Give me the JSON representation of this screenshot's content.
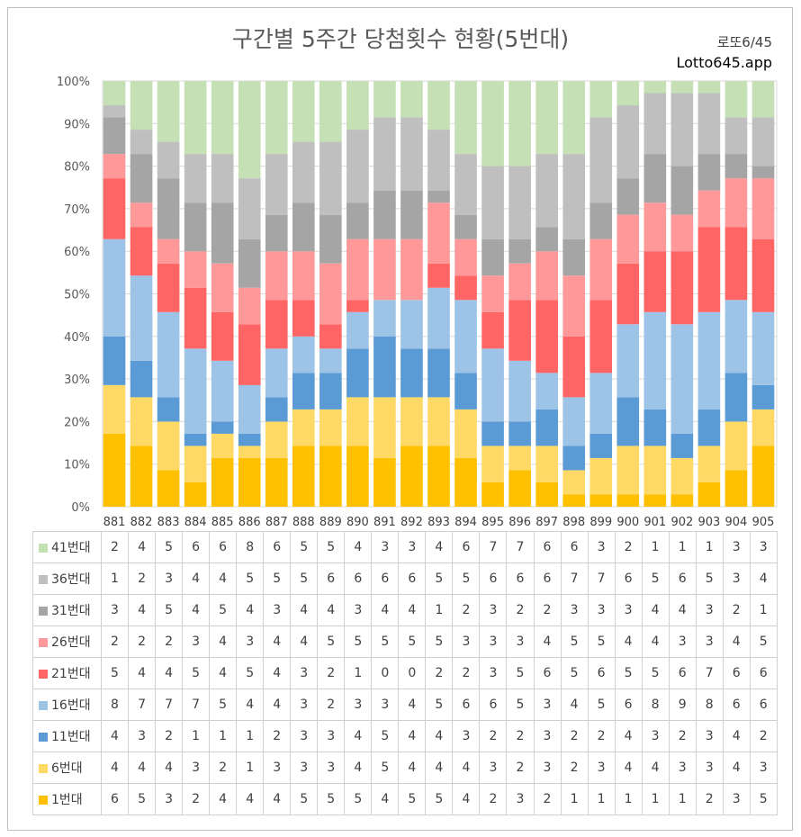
{
  "chart_data": {
    "type": "bar",
    "stacked": "percent",
    "title": "구간별 5주간 당첨횟수 현황(5번대)",
    "subtitle_lines": [
      "로또6/45",
      "Lotto645.app"
    ],
    "categories": [
      "881",
      "882",
      "883",
      "884",
      "885",
      "886",
      "887",
      "888",
      "889",
      "890",
      "891",
      "892",
      "893",
      "894",
      "895",
      "896",
      "897",
      "898",
      "899",
      "900",
      "901",
      "902",
      "903",
      "904",
      "905"
    ],
    "y_ticks": [
      "0%",
      "10%",
      "20%",
      "30%",
      "40%",
      "50%",
      "60%",
      "70%",
      "80%",
      "90%",
      "100%"
    ],
    "ylim": [
      0,
      100
    ],
    "grid": true,
    "legend_placement": "table-left",
    "series": [
      {
        "name": "1번대",
        "color": "#ffc000",
        "values": [
          6,
          5,
          3,
          2,
          4,
          4,
          4,
          5,
          5,
          5,
          4,
          5,
          5,
          4,
          2,
          3,
          2,
          1,
          1,
          1,
          1,
          1,
          2,
          3,
          5
        ]
      },
      {
        "name": "6번대",
        "color": "#ffd966",
        "values": [
          4,
          4,
          4,
          3,
          2,
          1,
          3,
          3,
          3,
          4,
          5,
          4,
          4,
          4,
          3,
          2,
          3,
          2,
          3,
          4,
          4,
          3,
          3,
          4,
          3
        ]
      },
      {
        "name": "11번대",
        "color": "#5b9bd5",
        "values": [
          4,
          3,
          2,
          1,
          1,
          1,
          2,
          3,
          3,
          4,
          5,
          4,
          4,
          3,
          2,
          2,
          3,
          2,
          2,
          4,
          3,
          2,
          3,
          4,
          2
        ]
      },
      {
        "name": "16번대",
        "color": "#9dc3e6",
        "values": [
          8,
          7,
          7,
          7,
          5,
          4,
          4,
          3,
          2,
          3,
          3,
          4,
          5,
          6,
          6,
          5,
          3,
          4,
          5,
          6,
          8,
          9,
          8,
          6,
          6
        ]
      },
      {
        "name": "21번대",
        "color": "#ff6565",
        "values": [
          5,
          4,
          4,
          5,
          4,
          5,
          4,
          3,
          2,
          1,
          0,
          0,
          2,
          2,
          3,
          5,
          6,
          5,
          6,
          5,
          5,
          6,
          7,
          6,
          6
        ]
      },
      {
        "name": "26번대",
        "color": "#ff9999",
        "values": [
          2,
          2,
          2,
          3,
          4,
          3,
          4,
          4,
          5,
          5,
          5,
          5,
          5,
          3,
          3,
          3,
          4,
          5,
          5,
          4,
          4,
          3,
          3,
          4,
          5
        ]
      },
      {
        "name": "31번대",
        "color": "#a5a5a5",
        "values": [
          3,
          4,
          5,
          4,
          5,
          4,
          3,
          4,
          4,
          3,
          4,
          4,
          1,
          2,
          3,
          2,
          2,
          3,
          3,
          3,
          4,
          4,
          3,
          2,
          1
        ]
      },
      {
        "name": "36번대",
        "color": "#bfbfbf",
        "values": [
          1,
          2,
          3,
          4,
          4,
          5,
          5,
          5,
          6,
          6,
          6,
          6,
          5,
          5,
          6,
          6,
          6,
          7,
          7,
          6,
          5,
          6,
          5,
          3,
          4
        ]
      },
      {
        "name": "41번대",
        "color": "#c5e0b4",
        "values": [
          2,
          4,
          5,
          6,
          6,
          8,
          6,
          5,
          5,
          4,
          3,
          3,
          4,
          6,
          7,
          7,
          6,
          6,
          3,
          2,
          1,
          1,
          1,
          3,
          3
        ]
      }
    ]
  }
}
